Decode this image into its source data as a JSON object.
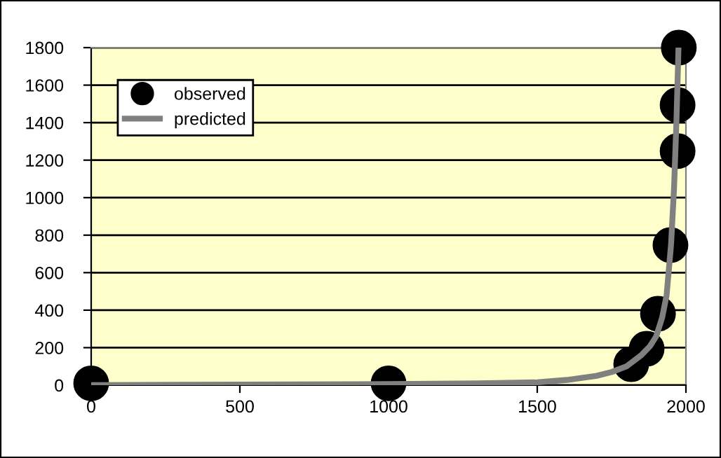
{
  "chart_data": {
    "type": "scatter",
    "xlim": [
      0,
      2000
    ],
    "ylim": [
      0,
      1800
    ],
    "xticks": [
      0,
      500,
      1000,
      1500,
      2000
    ],
    "yticks": [
      0,
      200,
      400,
      600,
      800,
      1000,
      1200,
      1400,
      1600,
      1800
    ],
    "grid": "y",
    "legend": "top left",
    "series": [
      {
        "name": "observed",
        "marker": "circle",
        "color": "#000000",
        "x": [
          0,
          1000,
          1816,
          1868,
          1906,
          1948,
          1972,
          1972,
          1976
        ],
        "values": [
          10,
          10,
          112,
          194,
          381,
          747,
          1248,
          1494,
          1800
        ]
      },
      {
        "name": "predicted",
        "type": "line",
        "marker": "none",
        "color": "#808080",
        "x": [
          0,
          500,
          1000,
          1300,
          1500,
          1600,
          1700,
          1750,
          1800,
          1850,
          1880,
          1900,
          1920,
          1935,
          1950,
          1960,
          1968,
          1975
        ],
        "values": [
          0,
          3,
          6,
          10,
          15,
          28,
          50,
          70,
          100,
          160,
          210,
          260,
          360,
          480,
          750,
          1050,
          1400,
          1800
        ]
      }
    ]
  }
}
